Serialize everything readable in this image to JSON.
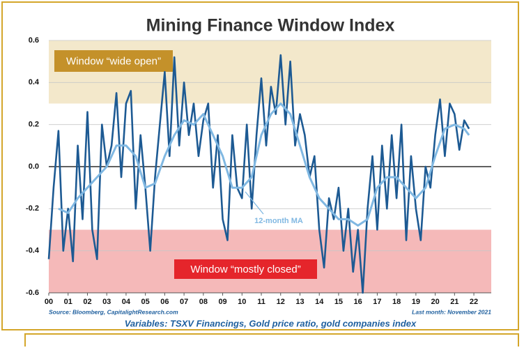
{
  "chart_data": {
    "type": "line",
    "title": "Mining Finance Window Index",
    "source": "Source: Bloomberg, CapitalightResearch.com",
    "last_month": "Last month: November 2021",
    "footer": "Variables: TSXV Financings, Gold price ratio, gold companies index",
    "xlim": [
      0,
      22.9
    ],
    "ylim": [
      -0.6,
      0.6
    ],
    "xticks": [
      {
        "value": 0,
        "label": "00"
      },
      {
        "value": 1,
        "label": "01"
      },
      {
        "value": 2,
        "label": "02"
      },
      {
        "value": 3,
        "label": "03"
      },
      {
        "value": 4,
        "label": "04"
      },
      {
        "value": 5,
        "label": "05"
      },
      {
        "value": 6,
        "label": "06"
      },
      {
        "value": 7,
        "label": "07"
      },
      {
        "value": 8,
        "label": "08"
      },
      {
        "value": 9,
        "label": "09"
      },
      {
        "value": 10,
        "label": "10"
      },
      {
        "value": 11,
        "label": "11"
      },
      {
        "value": 12,
        "label": "12"
      },
      {
        "value": 13,
        "label": "13"
      },
      {
        "value": 14,
        "label": "14"
      },
      {
        "value": 15,
        "label": "15"
      },
      {
        "value": 16,
        "label": "16"
      },
      {
        "value": 17,
        "label": "17"
      },
      {
        "value": 18,
        "label": "18"
      },
      {
        "value": 19,
        "label": "19"
      },
      {
        "value": 20,
        "label": "20"
      },
      {
        "value": 21,
        "label": "21"
      },
      {
        "value": 22,
        "label": "22"
      }
    ],
    "yticks": [
      0.6,
      0.4,
      0.2,
      {
        "value": 0,
        "label": "0.0"
      },
      -0.2,
      -0.4,
      -0.6
    ],
    "grid": true,
    "bands": [
      {
        "from": 0.3,
        "to": 0.6,
        "color": "#f3e8cb",
        "label": "Window “wide open”",
        "label_color": "#c4912a"
      },
      {
        "from": -0.6,
        "to": -0.3,
        "color": "#f5b9b9",
        "label": "Window “mostly closed”",
        "label_color": "#e5252b"
      }
    ],
    "series": [
      {
        "color": "#1d5a93",
        "x": [
          0,
          0.25,
          0.5,
          0.75,
          1,
          1.25,
          1.5,
          1.75,
          2,
          2.25,
          2.5,
          2.75,
          3,
          3.25,
          3.5,
          3.75,
          4,
          4.25,
          4.5,
          4.75,
          5,
          5.25,
          5.5,
          5.75,
          6,
          6.25,
          6.5,
          6.75,
          7,
          7.25,
          7.5,
          7.75,
          8,
          8.25,
          8.5,
          8.75,
          9,
          9.25,
          9.5,
          9.75,
          10,
          10.25,
          10.5,
          10.75,
          11,
          11.25,
          11.5,
          11.75,
          12,
          12.25,
          12.5,
          12.75,
          13,
          13.25,
          13.5,
          13.75,
          14,
          14.25,
          14.5,
          14.75,
          15,
          15.25,
          15.5,
          15.75,
          16,
          16.25,
          16.5,
          16.75,
          17,
          17.25,
          17.5,
          17.75,
          18,
          18.25,
          18.5,
          18.75,
          19,
          19.25,
          19.5,
          19.75,
          20,
          20.25,
          20.5,
          20.75,
          21,
          21.25,
          21.5,
          21.75
        ],
        "values": [
          -0.44,
          -0.1,
          0.17,
          -0.4,
          -0.2,
          -0.45,
          0.1,
          -0.25,
          0.26,
          -0.3,
          -0.44,
          0.2,
          0.0,
          0.1,
          0.35,
          -0.05,
          0.3,
          0.36,
          -0.2,
          0.15,
          -0.1,
          -0.4,
          -0.05,
          0.2,
          0.45,
          0.05,
          0.52,
          0.1,
          0.4,
          0.15,
          0.3,
          0.05,
          0.22,
          0.3,
          -0.1,
          0.15,
          -0.25,
          -0.35,
          0.15,
          -0.1,
          -0.15,
          0.2,
          -0.2,
          0.15,
          0.42,
          0.1,
          0.38,
          0.25,
          0.53,
          0.2,
          0.5,
          0.1,
          0.25,
          0.15,
          -0.05,
          0.05,
          -0.3,
          -0.48,
          -0.15,
          -0.25,
          -0.1,
          -0.4,
          -0.2,
          -0.5,
          -0.3,
          -0.6,
          -0.2,
          0.05,
          -0.3,
          0.1,
          -0.2,
          0.15,
          -0.15,
          0.2,
          -0.35,
          0.05,
          -0.2,
          -0.35,
          0.0,
          -0.1,
          0.15,
          0.32,
          0.05,
          0.3,
          0.25,
          0.08,
          0.22,
          0.18
        ]
      },
      {
        "name": "12-month MA",
        "color": "#80b8e2",
        "x": [
          0.5,
          1,
          1.5,
          2,
          2.5,
          3,
          3.5,
          4,
          4.5,
          5,
          5.5,
          6,
          6.5,
          7,
          7.5,
          8,
          8.5,
          9,
          9.5,
          10,
          10.5,
          11,
          11.5,
          12,
          12.5,
          13,
          13.5,
          14,
          14.5,
          15,
          15.5,
          16,
          16.5,
          17,
          17.5,
          18,
          18.5,
          19,
          19.5,
          20,
          20.5,
          21,
          21.5,
          21.75
        ],
        "values": [
          -0.2,
          -0.22,
          -0.15,
          -0.1,
          -0.05,
          0.0,
          0.1,
          0.1,
          0.05,
          -0.1,
          -0.08,
          0.05,
          0.15,
          0.22,
          0.2,
          0.25,
          0.15,
          0.05,
          -0.1,
          -0.1,
          -0.05,
          0.15,
          0.25,
          0.3,
          0.25,
          0.1,
          -0.05,
          -0.15,
          -0.2,
          -0.25,
          -0.25,
          -0.28,
          -0.25,
          -0.1,
          -0.05,
          -0.05,
          -0.1,
          -0.15,
          -0.1,
          0.05,
          0.18,
          0.2,
          0.18,
          0.15
        ]
      }
    ]
  }
}
